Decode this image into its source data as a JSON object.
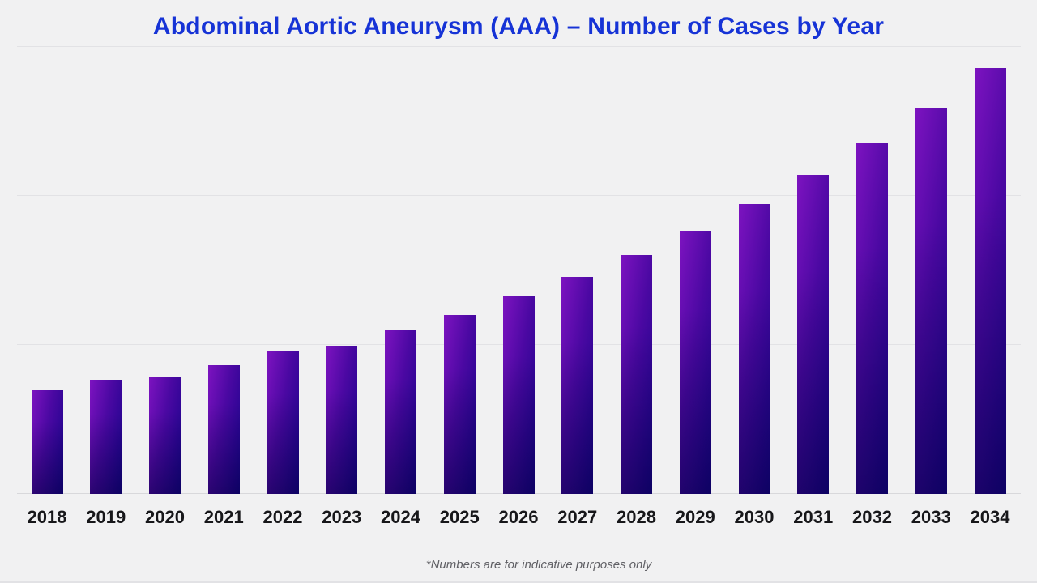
{
  "page": {
    "background": "#f1f1f2",
    "title_color": "#1633d6",
    "footnote_color": "#606065"
  },
  "chart_data": {
    "type": "bar",
    "title": "Abdominal Aortic Aneurysm (AAA) – Number of Cases by Year",
    "categories": [
      "2018",
      "2019",
      "2020",
      "2021",
      "2022",
      "2023",
      "2024",
      "2025",
      "2026",
      "2027",
      "2028",
      "2029",
      "2030",
      "2031",
      "2032",
      "2033",
      "2034"
    ],
    "values": [
      1.39,
      1.53,
      1.58,
      1.73,
      1.92,
      1.99,
      2.2,
      2.4,
      2.65,
      2.91,
      3.21,
      3.53,
      3.89,
      4.28,
      4.71,
      5.19,
      5.72
    ],
    "value_note": "y-axis has no tick labels; values estimated in gridline units (1.0 = one gridline interval)",
    "xlabel": "",
    "ylabel": "",
    "ylim": [
      0,
      6
    ],
    "gridline_count": 7,
    "grid": "horizontal only",
    "legend": "none",
    "bar_gradient": {
      "from": "#7d13c0",
      "mid": "#4a08a2",
      "to": "#0b0270"
    },
    "annotation": "*Numbers are for indicative purposes only"
  }
}
